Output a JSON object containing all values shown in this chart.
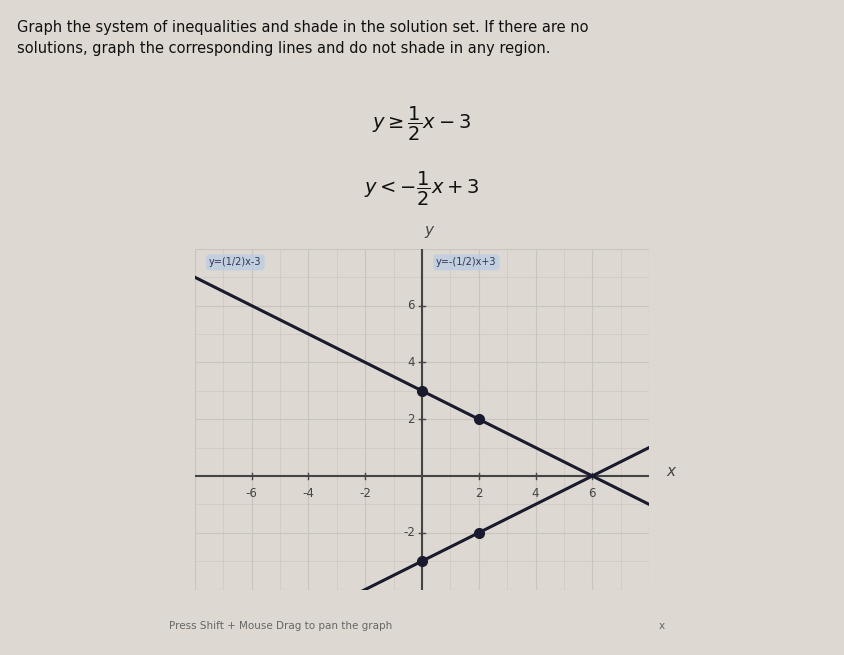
{
  "title_text": "Graph the system of inequalities and shade in the solution set. If there are no\nsolutions, graph the corresponding lines and do not shade in any region.",
  "line1_slope": 0.5,
  "line1_intercept": -3,
  "line2_slope": -0.5,
  "line2_intercept": 3,
  "xmin": -8,
  "xmax": 8,
  "ymin": -4,
  "ymax": 8,
  "xticks": [
    -6,
    -4,
    -2,
    2,
    4,
    6
  ],
  "yticks": [
    -2,
    2,
    4,
    6
  ],
  "xlabel": "x",
  "ylabel": "y",
  "grid_color": "#c8c4be",
  "axis_color": "#444444",
  "line_color": "#1a1a2e",
  "background_color": "#ddd9d2",
  "graph_bg_color": "#d4d0ca",
  "dot_color": "#1a1a2e",
  "legend_bg": "#b8cce4",
  "legend1_text": "y=(1/2)x-3",
  "legend2_text": "y=-(1/2)x+3",
  "footer_text": "Press Shift + Mouse Drag to pan the graph",
  "close_x": "x",
  "title_fontsize": 10.5,
  "ineq_fontsize": 14
}
